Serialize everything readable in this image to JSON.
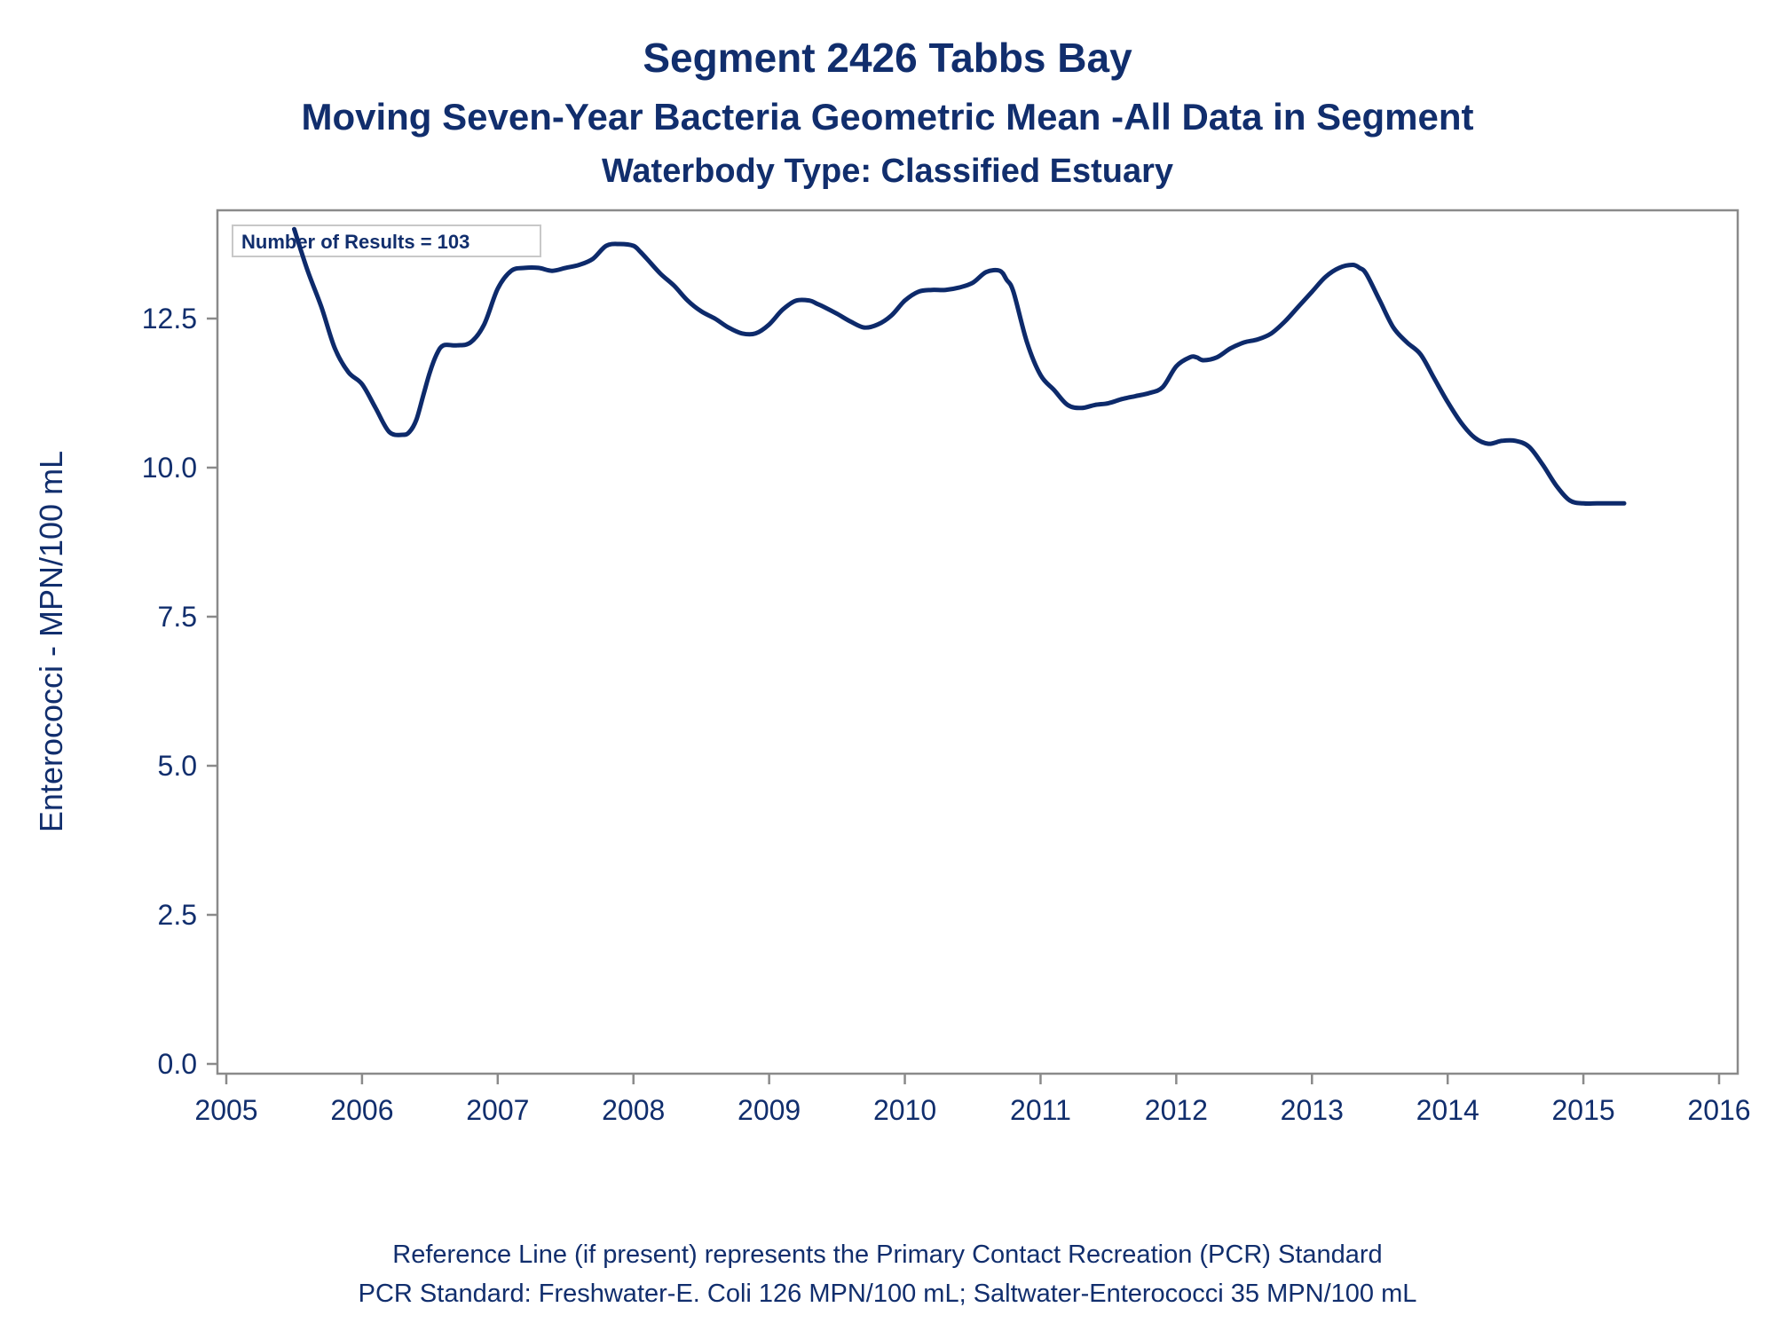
{
  "titles": {
    "line1": "Segment 2426    Tabbs Bay",
    "line2": "Moving Seven-Year Bacteria Geometric Mean -All Data in Segment",
    "line3": "Waterbody Type: Classified Estuary"
  },
  "footnotes": {
    "line1": "Reference Line (if present) represents the Primary Contact Recreation (PCR) Standard",
    "line2": "PCR Standard: Freshwater-E. Coli 126 MPN/100 mL; Saltwater-Enterococci 35 MPN/100 mL"
  },
  "colors": {
    "line": "#0d2a6b",
    "axis": "#8a8a8a",
    "text": "#112e6d"
  },
  "chart_data": {
    "type": "line",
    "ylabel": "Enterococci - MPN/100 mL",
    "xlabel": "",
    "annotation": "Number of Results = 103",
    "xlim": [
      2005,
      2016
    ],
    "ylim": [
      0,
      14.3
    ],
    "x_ticks": [
      2005,
      2006,
      2007,
      2008,
      2009,
      2010,
      2011,
      2012,
      2013,
      2014,
      2015,
      2016
    ],
    "y_ticks": [
      "0.0",
      "2.5",
      "5.0",
      "7.5",
      "10.0",
      "12.5"
    ],
    "grid": false,
    "series": [
      {
        "x": [
          2005.5,
          2005.6,
          2005.7,
          2005.8,
          2005.9,
          2006.0,
          2006.1,
          2006.2,
          2006.3,
          2006.35,
          2006.4,
          2006.45,
          2006.5,
          2006.55,
          2006.6,
          2006.7,
          2006.8,
          2006.9,
          2007.0,
          2007.1,
          2007.2,
          2007.3,
          2007.4,
          2007.5,
          2007.6,
          2007.7,
          2007.8,
          2007.9,
          2008.0,
          2008.05,
          2008.1,
          2008.2,
          2008.3,
          2008.4,
          2008.5,
          2008.6,
          2008.7,
          2008.8,
          2008.9,
          2009.0,
          2009.1,
          2009.2,
          2009.3,
          2009.35,
          2009.4,
          2009.5,
          2009.6,
          2009.7,
          2009.8,
          2009.9,
          2010.0,
          2010.1,
          2010.2,
          2010.3,
          2010.4,
          2010.5,
          2010.6,
          2010.7,
          2010.75,
          2010.8,
          2010.9,
          2011.0,
          2011.1,
          2011.2,
          2011.3,
          2011.4,
          2011.5,
          2011.6,
          2011.7,
          2011.8,
          2011.9,
          2012.0,
          2012.1,
          2012.15,
          2012.2,
          2012.3,
          2012.4,
          2012.5,
          2012.6,
          2012.7,
          2012.8,
          2012.9,
          2013.0,
          2013.1,
          2013.2,
          2013.3,
          2013.35,
          2013.4,
          2013.5,
          2013.6,
          2013.7,
          2013.8,
          2013.9,
          2014.0,
          2014.1,
          2014.2,
          2014.3,
          2014.4,
          2014.5,
          2014.6,
          2014.7,
          2014.8,
          2014.9,
          2015.0,
          2015.1,
          2015.2,
          2015.3
        ],
        "y": [
          14.0,
          13.3,
          12.7,
          12.0,
          11.6,
          11.4,
          11.0,
          10.6,
          10.55,
          10.6,
          10.8,
          11.2,
          11.6,
          11.9,
          12.05,
          12.05,
          12.1,
          12.4,
          13.0,
          13.3,
          13.35,
          13.35,
          13.3,
          13.35,
          13.4,
          13.5,
          13.72,
          13.75,
          13.72,
          13.62,
          13.5,
          13.25,
          13.05,
          12.8,
          12.62,
          12.5,
          12.35,
          12.25,
          12.25,
          12.4,
          12.65,
          12.8,
          12.8,
          12.75,
          12.7,
          12.58,
          12.45,
          12.35,
          12.4,
          12.55,
          12.8,
          12.95,
          12.98,
          12.98,
          13.02,
          13.1,
          13.28,
          13.3,
          13.15,
          12.95,
          12.1,
          11.55,
          11.3,
          11.05,
          11.0,
          11.05,
          11.08,
          11.15,
          11.2,
          11.25,
          11.35,
          11.7,
          11.85,
          11.85,
          11.8,
          11.85,
          12.0,
          12.1,
          12.15,
          12.25,
          12.45,
          12.7,
          12.95,
          13.2,
          13.35,
          13.4,
          13.35,
          13.25,
          12.8,
          12.35,
          12.1,
          11.9,
          11.5,
          11.1,
          10.75,
          10.5,
          10.4,
          10.45,
          10.45,
          10.35,
          10.05,
          9.7,
          9.45,
          9.4,
          9.4,
          9.4,
          9.4
        ]
      }
    ]
  }
}
